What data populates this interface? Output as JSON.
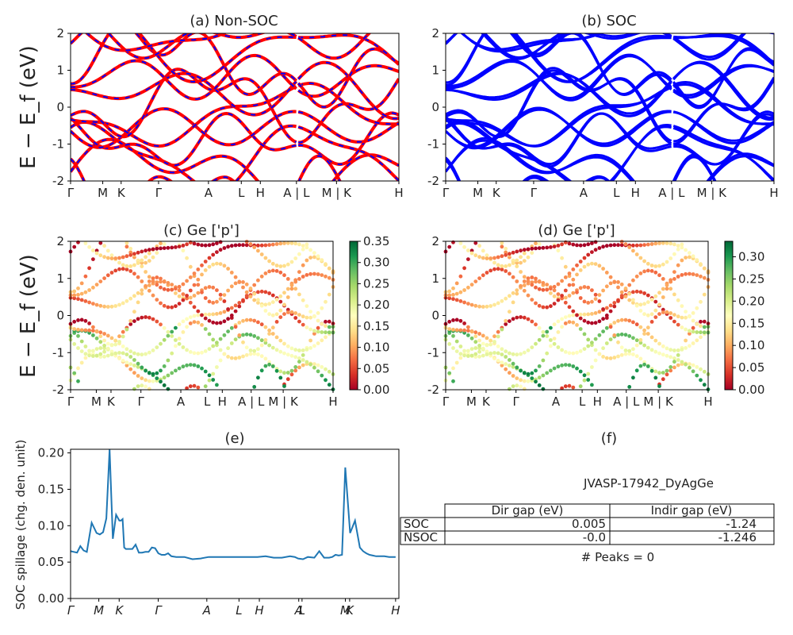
{
  "chart_data": [
    {
      "panel": "a",
      "type": "line",
      "title": "(a) Non-SOC",
      "ylabel": "E − E_f (eV)",
      "ylim": [
        -2,
        2
      ],
      "yticks": [
        -2,
        -1,
        0,
        1,
        2
      ],
      "xticklabels": [
        "Γ",
        "M",
        "K",
        "Γ",
        "A",
        "L",
        "H",
        "A | L",
        "M | K",
        "H"
      ],
      "grid": false,
      "series": [
        {
          "color": "#ff0000",
          "style": "solid"
        },
        {
          "color": "#0000ff",
          "style": "dashed"
        }
      ]
    },
    {
      "panel": "b",
      "type": "line",
      "title": "(b) SOC",
      "ylim": [
        -2,
        2
      ],
      "yticks": [
        -2,
        -1,
        0,
        1,
        2
      ],
      "xticklabels": [
        "Γ",
        "M",
        "K",
        "Γ",
        "A",
        "L",
        "H",
        "A | L",
        "M | K",
        "H"
      ],
      "grid": false,
      "series": [
        {
          "color": "#0000ff",
          "style": "solid"
        }
      ]
    },
    {
      "panel": "c",
      "type": "scatter",
      "title": "(c)  Ge ['p']",
      "ylabel": "E − E_f (eV)",
      "ylim": [
        -2,
        2
      ],
      "yticks": [
        -2,
        -1,
        0,
        1,
        2
      ],
      "xticklabels": [
        "Γ",
        "M",
        "K",
        "Γ",
        "A",
        "L",
        "H",
        "A | L",
        "M | K",
        "H"
      ],
      "colorbar": {
        "colormap": "RdYlGn",
        "range": [
          0.0,
          0.35
        ],
        "ticks": [
          "0.00",
          "0.05",
          "0.10",
          "0.15",
          "0.20",
          "0.25",
          "0.30",
          "0.35"
        ]
      }
    },
    {
      "panel": "d",
      "type": "scatter",
      "title": "(d) Ge ['p']",
      "ylim": [
        -2,
        2
      ],
      "yticks": [
        -2,
        -1,
        0,
        1,
        2
      ],
      "xticklabels": [
        "Γ",
        "M",
        "K",
        "Γ",
        "A",
        "L",
        "H",
        "A | L",
        "M | K",
        "H"
      ],
      "colorbar": {
        "colormap": "RdYlGn",
        "range": [
          0.0,
          0.335
        ],
        "ticks": [
          "0.00",
          "0.05",
          "0.10",
          "0.15",
          "0.20",
          "0.25",
          "0.30"
        ]
      }
    },
    {
      "panel": "e",
      "type": "line",
      "title": "(e)",
      "ylabel": "SOC spillage (chg. den. unit)",
      "ylim": [
        0,
        0.205
      ],
      "yticks": [
        "0.00",
        "0.05",
        "0.10",
        "0.15",
        "0.20"
      ],
      "xticklabels": [
        "Γ",
        "M",
        "K",
        "Γ",
        "A",
        "L",
        "H",
        "A",
        "L",
        "M",
        "K",
        "H"
      ],
      "color": "#1f77b4",
      "x": [
        0,
        0.2,
        0.4,
        0.6,
        0.8,
        1,
        1.3,
        1.6,
        1.8,
        2,
        2.2,
        2.4,
        2.6,
        2.8,
        3,
        3.1,
        3.2,
        3.3,
        3.4,
        3.6,
        3.8,
        4,
        4.2,
        4.4,
        4.6,
        4.8,
        5,
        5.2,
        5.4,
        5.6,
        5.8,
        6,
        6.2,
        6.5,
        6.8,
        7,
        7.5,
        8,
        8.5,
        9,
        9.5,
        10,
        10.5,
        11,
        11.5,
        12,
        12.5,
        13,
        13.5,
        13.8,
        14,
        14.3,
        14.6,
        15,
        15.3,
        15.6,
        15.9,
        16.1,
        16.3,
        16.5,
        16.7,
        16.9,
        17.2,
        17.5,
        17.8,
        18,
        18.2,
        18.4,
        18.6,
        18.8,
        19,
        19.3,
        19.6,
        20
      ],
      "y": [
        0.065,
        0.064,
        0.063,
        0.072,
        0.066,
        0.064,
        0.104,
        0.09,
        0.088,
        0.091,
        0.11,
        0.205,
        0.082,
        0.115,
        0.107,
        0.107,
        0.109,
        0.07,
        0.068,
        0.068,
        0.068,
        0.074,
        0.063,
        0.063,
        0.064,
        0.064,
        0.07,
        0.069,
        0.062,
        0.06,
        0.06,
        0.062,
        0.058,
        0.057,
        0.057,
        0.057,
        0.054,
        0.055,
        0.057,
        0.057,
        0.057,
        0.057,
        0.057,
        0.057,
        0.057,
        0.058,
        0.056,
        0.056,
        0.058,
        0.057,
        0.055,
        0.054,
        0.057,
        0.056,
        0.065,
        0.056,
        0.056,
        0.057,
        0.06,
        0.059,
        0.06,
        0.18,
        0.09,
        0.107,
        0.07,
        0.065,
        0.062,
        0.06,
        0.059,
        0.058,
        0.058,
        0.058,
        0.057,
        0.057
      ]
    },
    {
      "panel": "f",
      "type": "table",
      "title": "(f)",
      "caption": "JVASP-17942_DyAgGe",
      "columns": [
        "Dir gap (eV)",
        "Indir gap (eV)"
      ],
      "rows": [
        {
          "label": "SOC",
          "values": [
            "0.005",
            "-1.24"
          ]
        },
        {
          "label": "NSOC",
          "values": [
            "-0.0",
            "-1.246"
          ]
        }
      ],
      "footer": "# Peaks = 0"
    }
  ]
}
